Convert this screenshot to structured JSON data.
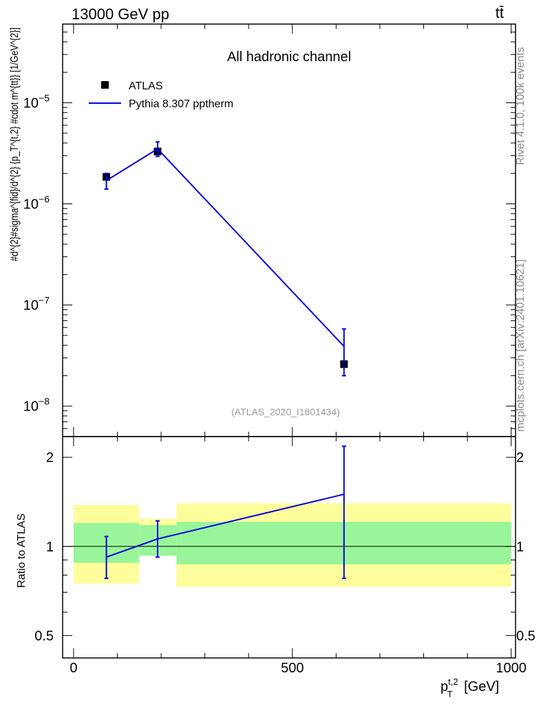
{
  "header": {
    "energy_label": "13000 GeV pp",
    "process_label": "tt̄"
  },
  "side_labels": {
    "rivet": "Rivet 4.1.0,  100k events",
    "mcplots": "mcplots.cern.ch [arXiv:2401.10621]"
  },
  "colors": {
    "data_marker": "#000000",
    "mc_line": "#0000e0",
    "band_inner": "#99f599",
    "band_outer": "#fdfd9b"
  },
  "chart_data": [
    {
      "type": "line",
      "scale": "log",
      "title": "All hadronic channel",
      "analysis_id": "(ATLAS_2020_I1801434)",
      "ylabel": "#d^{2}#sigma^{fid}/d^{2} {p_T^{t,2} #cdot m^{tt}} [1/GeV^{2}]",
      "ylim": [
        5e-09,
        6e-05
      ],
      "y_ticks": [
        {
          "value": 1e-08,
          "base": "10",
          "exp": "−8"
        },
        {
          "value": 1e-07,
          "base": "10",
          "exp": "−7"
        },
        {
          "value": 1e-06,
          "base": "10",
          "exp": "−6"
        },
        {
          "value": 1e-05,
          "base": "10",
          "exp": "−5"
        }
      ],
      "legend": [
        "ATLAS",
        "Pythia 8.307 pptherm"
      ],
      "legend_position": "top-left",
      "x": [
        75,
        192,
        618
      ],
      "series": [
        {
          "name": "ATLAS",
          "values": [
            1.85e-06,
            3.3e-06,
            2.6e-08
          ]
        },
        {
          "name": "Pythia 8.307 pptherm",
          "values": [
            1.7e-06,
            3.5e-06,
            3.9e-08
          ],
          "err_low": [
            1.4e-06,
            2.95e-06,
            2e-08
          ],
          "err_high": [
            2e-06,
            4.1e-06,
            5.8e-08
          ]
        }
      ]
    },
    {
      "type": "line",
      "ylabel": "Ratio to ATLAS",
      "xlabel": "p_T^{t,2} [GeV]",
      "xlim": [
        -25,
        1010
      ],
      "ylim": [
        0.42,
        2.35
      ],
      "x_ticks": [
        0,
        500,
        1000
      ],
      "y_ticks": [
        0.5,
        1,
        2
      ],
      "bands": [
        {
          "x0": 0,
          "x1": 150,
          "inner": [
            0.88,
            1.2
          ],
          "outer": [
            0.75,
            1.38
          ]
        },
        {
          "x0": 150,
          "x1": 235,
          "inner": [
            0.93,
            1.18
          ],
          "outer": [
            0.93,
            1.24
          ]
        },
        {
          "x0": 235,
          "x1": 1000,
          "inner": [
            0.87,
            1.21
          ],
          "outer": [
            0.73,
            1.4
          ]
        }
      ],
      "series": [
        {
          "name": "Pythia 8.307 pptherm / ATLAS",
          "x": [
            75,
            192,
            618
          ],
          "values": [
            0.92,
            1.06,
            1.5
          ],
          "err_low": [
            0.78,
            0.92,
            0.78
          ],
          "err_high": [
            1.08,
            1.22,
            2.18
          ]
        }
      ]
    }
  ]
}
